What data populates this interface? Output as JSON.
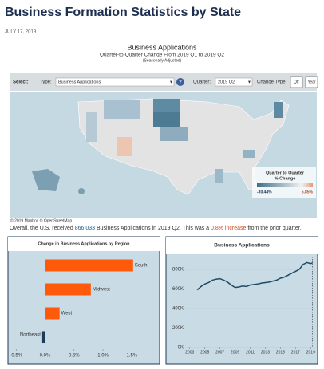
{
  "header": {
    "title": "Business Formation Statistics by State",
    "date": "JULY 17, 2019"
  },
  "dashboard": {
    "title": "Business Applications",
    "subtitle": "Quarter-to-Quarter Change From 2019 Q1 to 2019 Q2",
    "note": "(Seasonally Adjusted)",
    "controls": {
      "select": "Select:",
      "type_label": "Type:",
      "type_value": "Business Applications",
      "help": "?",
      "quarter_label": "Quarter:",
      "quarter_value": "2019 Q2",
      "change_label": "Change Type:",
      "btn_qtr": "Qtr",
      "btn_year": "Year"
    },
    "legend": {
      "title_1": "Quarter to Quarter",
      "title_2": "% Change",
      "min": "-30.44%",
      "max": "5.85%"
    },
    "credit": "© 2019 Mapbox © OpenStreetMap",
    "summary": [
      "Overall, the U.S. received ",
      "866,033",
      " Business Applications in 2019 Q2. This was a ",
      "0.8% increase",
      " from the prior quarter."
    ]
  },
  "chart_data": [
    {
      "type": "bar",
      "orientation": "horizontal",
      "title": "Change in Business Applications by Region",
      "categories": [
        "South",
        "Midwest",
        "West",
        "Northeast"
      ],
      "values": [
        1.52,
        0.79,
        0.25,
        -0.05
      ],
      "colors": [
        "#ff5a0a",
        "#ff5a0a",
        "#ff5a0a",
        "#1d3a57"
      ],
      "xlim": [
        -0.6,
        1.95
      ],
      "xticks": [
        {
          "value": -0.5,
          "label": "-0.5%"
        },
        {
          "value": 0,
          "label": "0.0%"
        },
        {
          "value": 0.5,
          "label": "0.5%"
        },
        {
          "value": 1,
          "label": "1.0%"
        },
        {
          "value": 1.5,
          "label": "1.5%"
        }
      ]
    },
    {
      "type": "line",
      "title": "Business Applications",
      "x": [
        2004,
        2004.5,
        2005,
        2005.5,
        2006,
        2006.5,
        2007,
        2007.5,
        2008,
        2008.5,
        2009,
        2009.5,
        2010,
        2010.5,
        2011,
        2011.5,
        2012,
        2012.5,
        2013,
        2013.5,
        2014,
        2014.5,
        2015,
        2015.5,
        2016,
        2016.5,
        2017,
        2017.5,
        2018,
        2018.5,
        2019,
        2019.25
      ],
      "series": [
        {
          "name": "Business Applications",
          "color": "#1d4a66",
          "values": [
            590000,
            625000,
            650000,
            665000,
            690000,
            700000,
            705000,
            690000,
            670000,
            640000,
            615000,
            620000,
            630000,
            625000,
            640000,
            645000,
            650000,
            660000,
            665000,
            670000,
            680000,
            690000,
            710000,
            720000,
            740000,
            760000,
            780000,
            800000,
            850000,
            870000,
            859000,
            866033
          ]
        }
      ],
      "xlim": [
        2002.5,
        2019.6
      ],
      "xticks": [
        2003,
        2005,
        2007,
        2009,
        2011,
        2013,
        2015,
        2017,
        2019
      ],
      "ylim": [
        0,
        930000
      ],
      "yticks": [
        {
          "value": 0,
          "label": "0K"
        },
        {
          "value": 200000,
          "label": "200K"
        },
        {
          "value": 400000,
          "label": "400K"
        },
        {
          "value": 600000,
          "label": "600K"
        },
        {
          "value": 800000,
          "label": "800K"
        }
      ]
    }
  ]
}
